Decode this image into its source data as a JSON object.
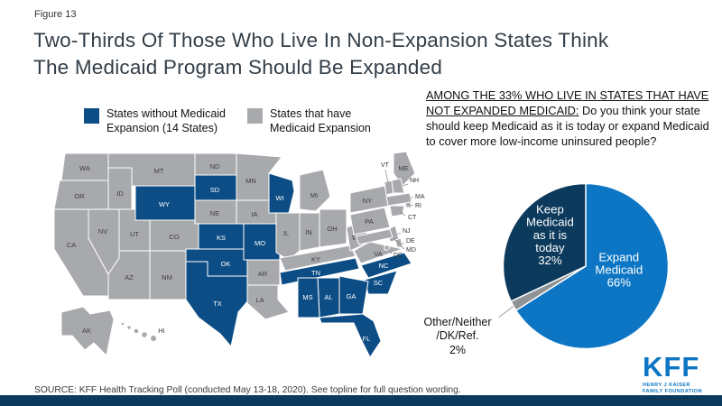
{
  "figure_label": "Figure 13",
  "title": {
    "line1": "Two-Thirds Of Those Who Live In Non-Expansion States Think",
    "line2": "The Medicaid Program Should Be Expanded"
  },
  "question": {
    "underlined": "AMONG THE 33% WHO LIVE IN STATES THAT HAVE NOT EXPANDED MEDICAID:",
    "rest": "Do you think your state should keep Medicaid as it is today or expand Medicaid to cover more low-income uninsured people?"
  },
  "chart_data": [
    {
      "id": "medicaid-opinion-pie",
      "type": "pie",
      "direction": "clockwise",
      "start_angle_deg": 0,
      "slices": [
        {
          "id": "expand",
          "label": "Expand Medicaid",
          "value": 66,
          "color": "#0d76c4",
          "label_lines": [
            "Expand",
            "Medicaid",
            "66%"
          ]
        },
        {
          "id": "other",
          "label": "Other/Neither/DK/Ref.",
          "value": 2,
          "color": "#909396",
          "label_lines": [
            "Other/Neither",
            "/DK/Ref.",
            "2%"
          ]
        },
        {
          "id": "keep",
          "label": "Keep Medicaid as it is today",
          "value": 32,
          "color": "#0c3a5c",
          "label_lines": [
            "Keep",
            "Medicaid",
            "as it is",
            "today",
            "32%"
          ]
        }
      ]
    },
    {
      "id": "expansion-map",
      "type": "choropleth",
      "legend": [
        {
          "label": "States without Medicaid Expansion (14 States)",
          "color": "#0d4d85"
        },
        {
          "label": "States that have Medicaid Expansion",
          "color": "#a7a9ac"
        }
      ],
      "non_expansion_states": [
        "WY",
        "SD",
        "WI",
        "KS",
        "MO",
        "OK",
        "TX",
        "MS",
        "AL",
        "TN",
        "GA",
        "SC",
        "NC",
        "FL"
      ],
      "expansion_states": [
        "WA",
        "OR",
        "CA",
        "ID",
        "MT",
        "NV",
        "UT",
        "CO",
        "AZ",
        "NM",
        "ND",
        "NE",
        "MN",
        "IA",
        "AR",
        "LA",
        "IL",
        "MI",
        "IN",
        "OH",
        "KY",
        "WV",
        "VA",
        "PA",
        "NY",
        "ME",
        "VT",
        "NH",
        "MA",
        "RI",
        "CT",
        "NJ",
        "DE",
        "MD",
        "DC",
        "AK",
        "HI"
      ],
      "callout_labels": [
        "VT",
        "NH",
        "MA",
        "RI",
        "CT",
        "NJ",
        "DE",
        "MD",
        "DC"
      ]
    }
  ],
  "source": "SOURCE: KFF Health Tracking Poll (conducted May 13-18, 2020). See topline for full question wording.",
  "logo": {
    "text": "KFF",
    "sub1": "HENRY J KAISER",
    "sub2": "FAMILY FOUNDATION"
  },
  "colors": {
    "footer_bar": "#0c3a5c",
    "kff_blue": "#0d76c4",
    "title_text": "#333e48"
  }
}
